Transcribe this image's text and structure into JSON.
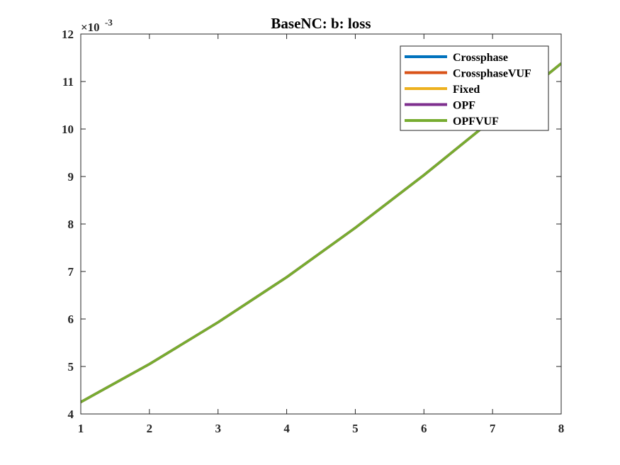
{
  "chart_data": {
    "type": "line",
    "title": "BaseNC: b: loss",
    "xlabel": "",
    "ylabel": "",
    "xlim": [
      1,
      8
    ],
    "ylim": [
      4,
      12
    ],
    "y_exponent_base": "×10",
    "y_exponent_power": "-3",
    "x_ticks": [
      1,
      2,
      3,
      4,
      5,
      6,
      7,
      8
    ],
    "y_ticks": [
      4,
      5,
      6,
      7,
      8,
      9,
      10,
      11,
      12
    ],
    "grid": false,
    "legend_position": "top-right",
    "x": [
      1,
      2,
      3,
      4,
      5,
      6,
      7,
      8
    ],
    "series": [
      {
        "name": "Crossphase",
        "color": "#0072bd",
        "values": [
          4.25,
          5.05,
          5.93,
          6.88,
          7.92,
          9.03,
          10.2,
          11.38
        ]
      },
      {
        "name": "CrossphaseVUF",
        "color": "#d95319",
        "values": [
          4.25,
          5.05,
          5.93,
          6.88,
          7.92,
          9.03,
          10.2,
          11.38
        ]
      },
      {
        "name": "Fixed",
        "color": "#edb120",
        "values": [
          4.25,
          5.05,
          5.93,
          6.88,
          7.92,
          9.03,
          10.2,
          11.38
        ]
      },
      {
        "name": "OPF",
        "color": "#7e2f8e",
        "values": [
          4.25,
          5.05,
          5.93,
          6.88,
          7.92,
          9.03,
          10.2,
          11.38
        ]
      },
      {
        "name": "OPFVUF",
        "color": "#77ac30",
        "values": [
          4.25,
          5.05,
          5.93,
          6.88,
          7.92,
          9.03,
          10.2,
          11.38
        ]
      }
    ]
  }
}
